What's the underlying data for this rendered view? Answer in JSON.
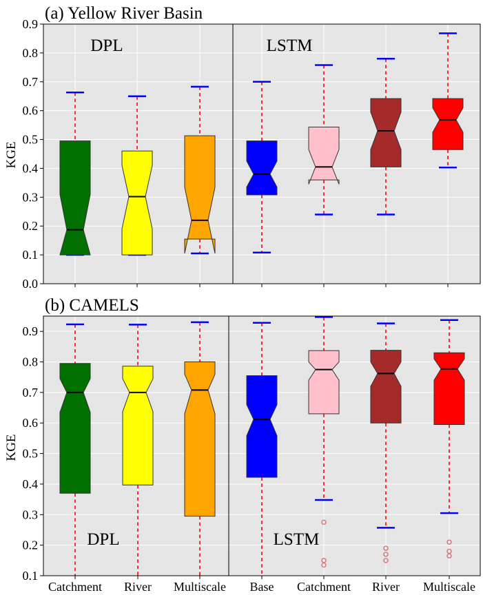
{
  "chart_data": [
    {
      "type": "box",
      "title": "(a) Yellow River Basin",
      "ylabel": "KGE",
      "ylim": [
        0.0,
        0.9
      ],
      "yticks": [
        "0.0",
        "0.1",
        "0.2",
        "0.3",
        "0.4",
        "0.5",
        "0.6",
        "0.7",
        "0.8",
        "0.9"
      ],
      "grid": true,
      "group_labels": [
        "DPL",
        "LSTM"
      ],
      "boxes": [
        {
          "category": "Catchment",
          "group": "DPL",
          "color": "#007000",
          "whisker_low": 0.1,
          "q1": 0.1,
          "median": 0.187,
          "q3": 0.495,
          "whisker_high": 0.663,
          "notch_low": 0.1,
          "notch_high": 0.31,
          "outliers": []
        },
        {
          "category": "River",
          "group": "DPL",
          "color": "#ffff00",
          "whisker_low": 0.1,
          "q1": 0.1,
          "median": 0.302,
          "q3": 0.46,
          "whisker_high": 0.65,
          "notch_low": 0.19,
          "notch_high": 0.41,
          "outliers": []
        },
        {
          "category": "Multiscale",
          "group": "DPL",
          "color": "#ffa500",
          "whisker_low": 0.105,
          "q1": 0.155,
          "median": 0.22,
          "q3": 0.513,
          "whisker_high": 0.683,
          "notch_low": 0.105,
          "notch_high": 0.335,
          "outliers": []
        },
        {
          "category": "Base",
          "group": "LSTM",
          "color": "#0000ff",
          "whisker_low": 0.108,
          "q1": 0.308,
          "median": 0.38,
          "q3": 0.495,
          "whisker_high": 0.7,
          "notch_low": 0.335,
          "notch_high": 0.425,
          "outliers": []
        },
        {
          "category": "Catchment",
          "group": "LSTM",
          "color": "#ffc0cb",
          "whisker_low": 0.24,
          "q1": 0.36,
          "median": 0.405,
          "q3": 0.543,
          "whisker_high": 0.758,
          "notch_low": 0.345,
          "notch_high": 0.465,
          "outliers": []
        },
        {
          "category": "River",
          "group": "LSTM",
          "color": "#a52a2a",
          "whisker_low": 0.24,
          "q1": 0.405,
          "median": 0.53,
          "q3": 0.642,
          "whisker_high": 0.78,
          "notch_low": 0.465,
          "notch_high": 0.595,
          "outliers": []
        },
        {
          "category": "Multiscale",
          "group": "LSTM",
          "color": "#ff0000",
          "whisker_low": 0.403,
          "q1": 0.465,
          "median": 0.568,
          "q3": 0.642,
          "whisker_high": 0.868,
          "notch_low": 0.525,
          "notch_high": 0.61,
          "outliers": []
        }
      ]
    },
    {
      "type": "box",
      "title": "(b) CAMELS",
      "ylabel": "KGE",
      "ylim": [
        0.1,
        0.95
      ],
      "yticks": [
        "0.1",
        "0.2",
        "0.3",
        "0.4",
        "0.5",
        "0.6",
        "0.7",
        "0.8",
        "0.9"
      ],
      "grid": true,
      "group_labels": [
        "DPL",
        "LSTM"
      ],
      "categories": [
        "Catchment",
        "River",
        "Multiscale",
        "Base",
        "Catchment",
        "River",
        "Multiscale"
      ],
      "boxes": [
        {
          "category": "Catchment",
          "group": "DPL",
          "color": "#007000",
          "whisker_low": 0.1,
          "q1": 0.37,
          "median": 0.7,
          "q3": 0.795,
          "whisker_high": 0.923,
          "notch_low": 0.635,
          "notch_high": 0.745,
          "outliers": []
        },
        {
          "category": "River",
          "group": "DPL",
          "color": "#ffff00",
          "whisker_low": 0.1,
          "q1": 0.397,
          "median": 0.7,
          "q3": 0.786,
          "whisker_high": 0.922,
          "notch_low": 0.637,
          "notch_high": 0.745,
          "outliers": []
        },
        {
          "category": "Multiscale",
          "group": "DPL",
          "color": "#ffa500",
          "whisker_low": 0.1,
          "q1": 0.295,
          "median": 0.708,
          "q3": 0.8,
          "whisker_high": 0.93,
          "notch_low": 0.63,
          "notch_high": 0.76,
          "outliers": []
        },
        {
          "category": "Base",
          "group": "LSTM",
          "color": "#0000ff",
          "whisker_low": 0.1,
          "q1": 0.422,
          "median": 0.612,
          "q3": 0.755,
          "whisker_high": 0.928,
          "notch_low": 0.558,
          "notch_high": 0.66,
          "outliers": []
        },
        {
          "category": "Catchment",
          "group": "LSTM",
          "color": "#ffc0cb",
          "whisker_low": 0.348,
          "q1": 0.63,
          "median": 0.775,
          "q3": 0.837,
          "whisker_high": 0.947,
          "notch_low": 0.74,
          "notch_high": 0.8,
          "outliers": [
            0.275,
            0.15,
            0.135
          ]
        },
        {
          "category": "River",
          "group": "LSTM",
          "color": "#a52a2a",
          "whisker_low": 0.257,
          "q1": 0.6,
          "median": 0.762,
          "q3": 0.838,
          "whisker_high": 0.926,
          "notch_low": 0.72,
          "notch_high": 0.8,
          "outliers": [
            0.19,
            0.17,
            0.15
          ]
        },
        {
          "category": "Multiscale",
          "group": "LSTM",
          "color": "#ff0000",
          "whisker_low": 0.305,
          "q1": 0.595,
          "median": 0.777,
          "q3": 0.83,
          "whisker_high": 0.937,
          "notch_low": 0.74,
          "notch_high": 0.81,
          "outliers": [
            0.21,
            0.18,
            0.165
          ]
        }
      ]
    }
  ]
}
